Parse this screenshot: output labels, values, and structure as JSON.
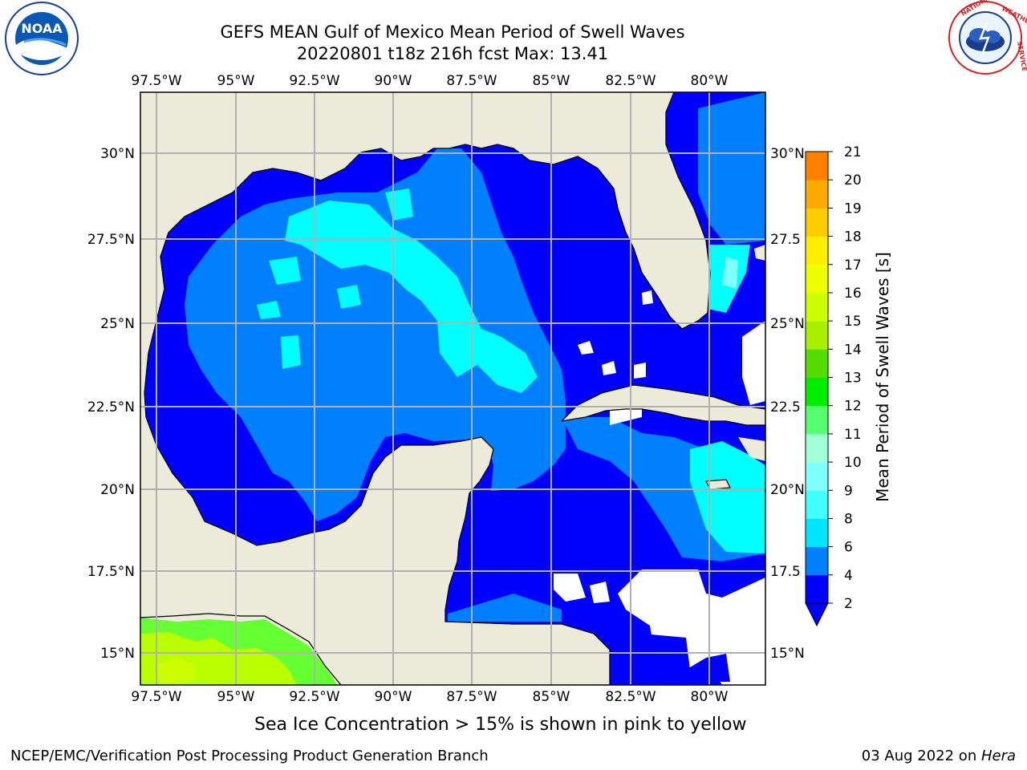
{
  "header": {
    "title_line1": "GEFS MEAN Gulf of Mexico Mean Period of Swell Waves",
    "title_line2": "20220801 t18z 216h fcst   Max: 13.41"
  },
  "logos": {
    "left": "NOAA",
    "left_ring": "NATIONAL OCEANIC AND ATMOSPHERIC ADMINISTRATION · U.S. DEPARTMENT OF COMMERCE",
    "right_ring": "NATIONAL WEATHER SERVICE"
  },
  "map": {
    "lon_labels": [
      "97.5°W",
      "95°W",
      "92.5°W",
      "90°W",
      "87.5°W",
      "85°W",
      "82.5°W",
      "80°W"
    ],
    "lat_labels_left": [
      "30°N",
      "27.5°N",
      "25°N",
      "22.5°N",
      "20°N",
      "17.5°N",
      "15°N"
    ],
    "lat_labels_right": [
      "30°N",
      "27.5",
      "25°N",
      "22.5",
      "20°N",
      "17.5",
      "15°N"
    ],
    "colors": {
      "land": "#ecebda",
      "band_0_2": "#0000ff",
      "band_2_4": "#0080ff",
      "band_4_6": "#00ffff",
      "band_11_13": "#b9ff00",
      "band_10_11": "#66ff33",
      "grid": "#b0b0b0"
    }
  },
  "colorbar": {
    "label": "Mean Period of Swell Waves [s]",
    "ticks": [
      "2",
      "4",
      "6",
      "8",
      "9",
      "10",
      "11",
      "12",
      "13",
      "14",
      "15",
      "16",
      "17",
      "18",
      "19",
      "20",
      "21"
    ],
    "colors": [
      "#0000ff",
      "#0080ff",
      "#00e5ff",
      "#40ffff",
      "#80ffff",
      "#a0ffd8",
      "#55ff70",
      "#00ee00",
      "#55dd00",
      "#aaee00",
      "#ccff00",
      "#eeff00",
      "#ffee00",
      "#ffcc00",
      "#ffaa00",
      "#ff8000",
      "#ff5500",
      "#ff2200",
      "#ff0000"
    ]
  },
  "footer": {
    "note": "Sea Ice Concentration > 15% is shown in pink to yellow",
    "credit": "NCEP/EMC/Verification Post Processing Product Generation Branch",
    "date_prefix": "03 Aug 2022 on ",
    "date_machine": "Hera"
  }
}
